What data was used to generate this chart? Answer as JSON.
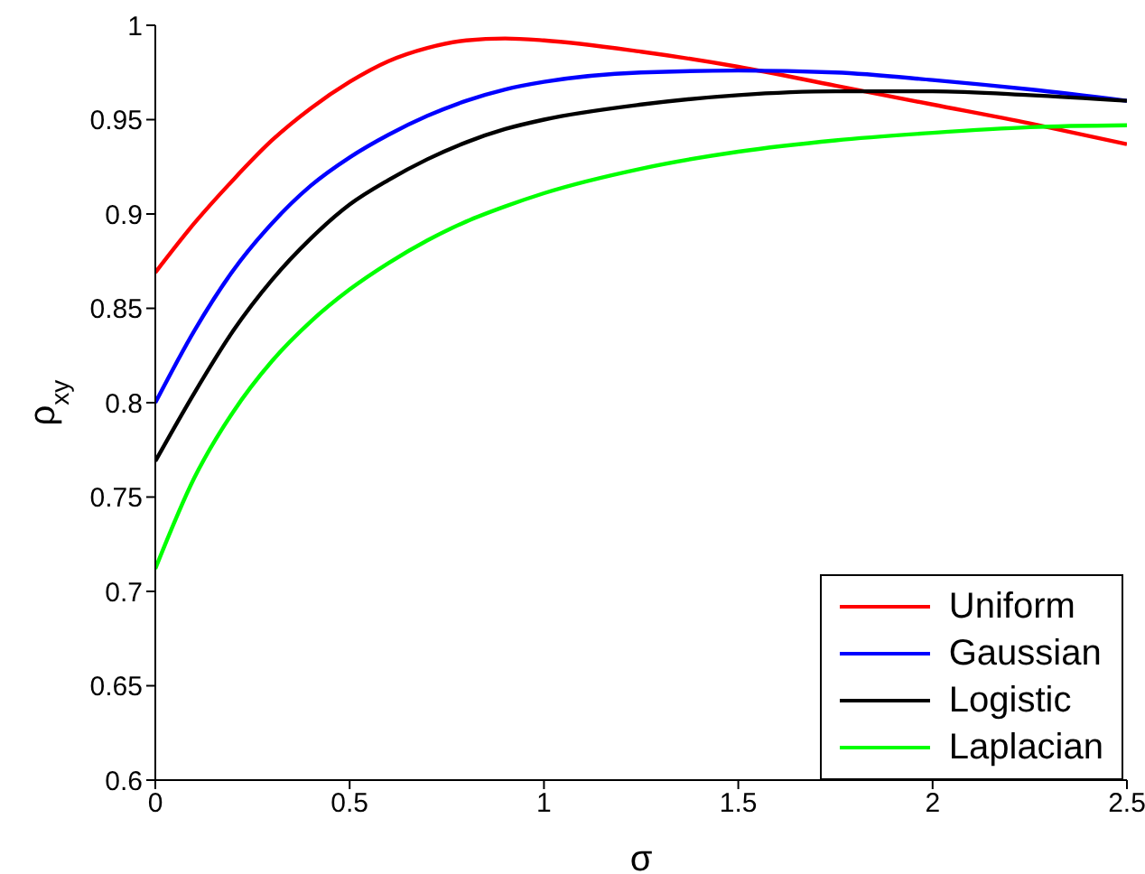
{
  "chart_data": {
    "type": "line",
    "xlabel": "σ",
    "ylabel": "ρ$_{xy}$",
    "x": [
      0,
      0.1,
      0.2,
      0.3,
      0.4,
      0.5,
      0.6,
      0.7,
      0.8,
      0.9,
      1.0,
      1.25,
      1.5,
      1.75,
      2.0,
      2.25,
      2.5
    ],
    "series": [
      {
        "name": "Uniform",
        "color": "#ff0000",
        "values": [
          0.869,
          0.895,
          0.918,
          0.939,
          0.956,
          0.97,
          0.981,
          0.988,
          0.992,
          0.993,
          0.992,
          0.986,
          0.978,
          0.968,
          0.958,
          0.948,
          0.937
        ]
      },
      {
        "name": "Gaussian",
        "color": "#0000ff",
        "values": [
          0.8,
          0.838,
          0.87,
          0.895,
          0.915,
          0.93,
          0.942,
          0.952,
          0.96,
          0.966,
          0.97,
          0.975,
          0.976,
          0.975,
          0.971,
          0.966,
          0.96
        ]
      },
      {
        "name": "Logistic",
        "color": "#000000",
        "values": [
          0.769,
          0.805,
          0.838,
          0.865,
          0.887,
          0.905,
          0.918,
          0.929,
          0.938,
          0.945,
          0.95,
          0.958,
          0.963,
          0.965,
          0.965,
          0.963,
          0.96
        ]
      },
      {
        "name": "Laplacian",
        "color": "#00ff00",
        "values": [
          0.712,
          0.76,
          0.795,
          0.822,
          0.843,
          0.86,
          0.874,
          0.886,
          0.896,
          0.904,
          0.911,
          0.924,
          0.933,
          0.939,
          0.943,
          0.946,
          0.947
        ]
      }
    ],
    "xlim": [
      0,
      2.5
    ],
    "xticks": [
      0,
      0.5,
      1,
      1.5,
      2,
      2.5
    ],
    "ylim": [
      0.6,
      1
    ],
    "yticks": [
      0.6,
      0.65,
      0.7,
      0.75,
      0.8,
      0.85,
      0.9,
      0.95,
      1
    ],
    "grid": false,
    "legend": "bottom right",
    "marker": "none",
    "line_style": "solid"
  }
}
